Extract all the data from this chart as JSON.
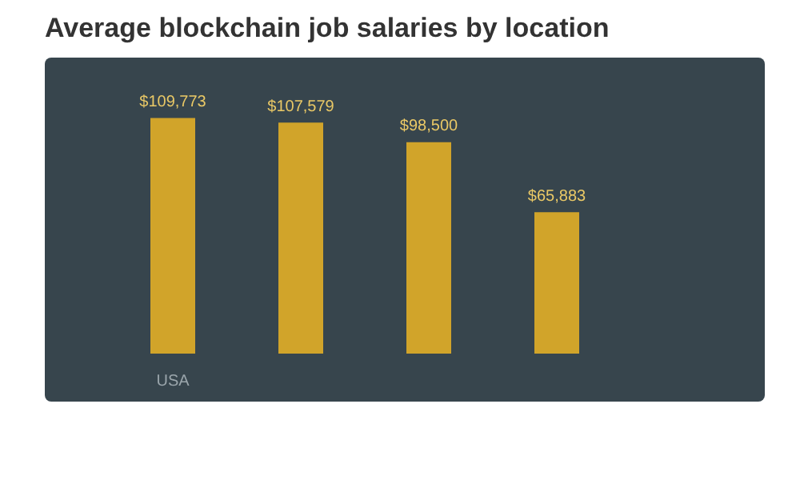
{
  "chart_data": {
    "type": "bar",
    "title": "Average blockchain job salaries by location",
    "categories": [
      "USA",
      null,
      null,
      null
    ],
    "values": [
      109773,
      107579,
      98500,
      65883
    ],
    "value_labels": [
      "$109,773",
      "$107,579",
      "$98,500",
      "$65,883"
    ],
    "color": "#d1a42a",
    "grid": false,
    "legend": false
  }
}
